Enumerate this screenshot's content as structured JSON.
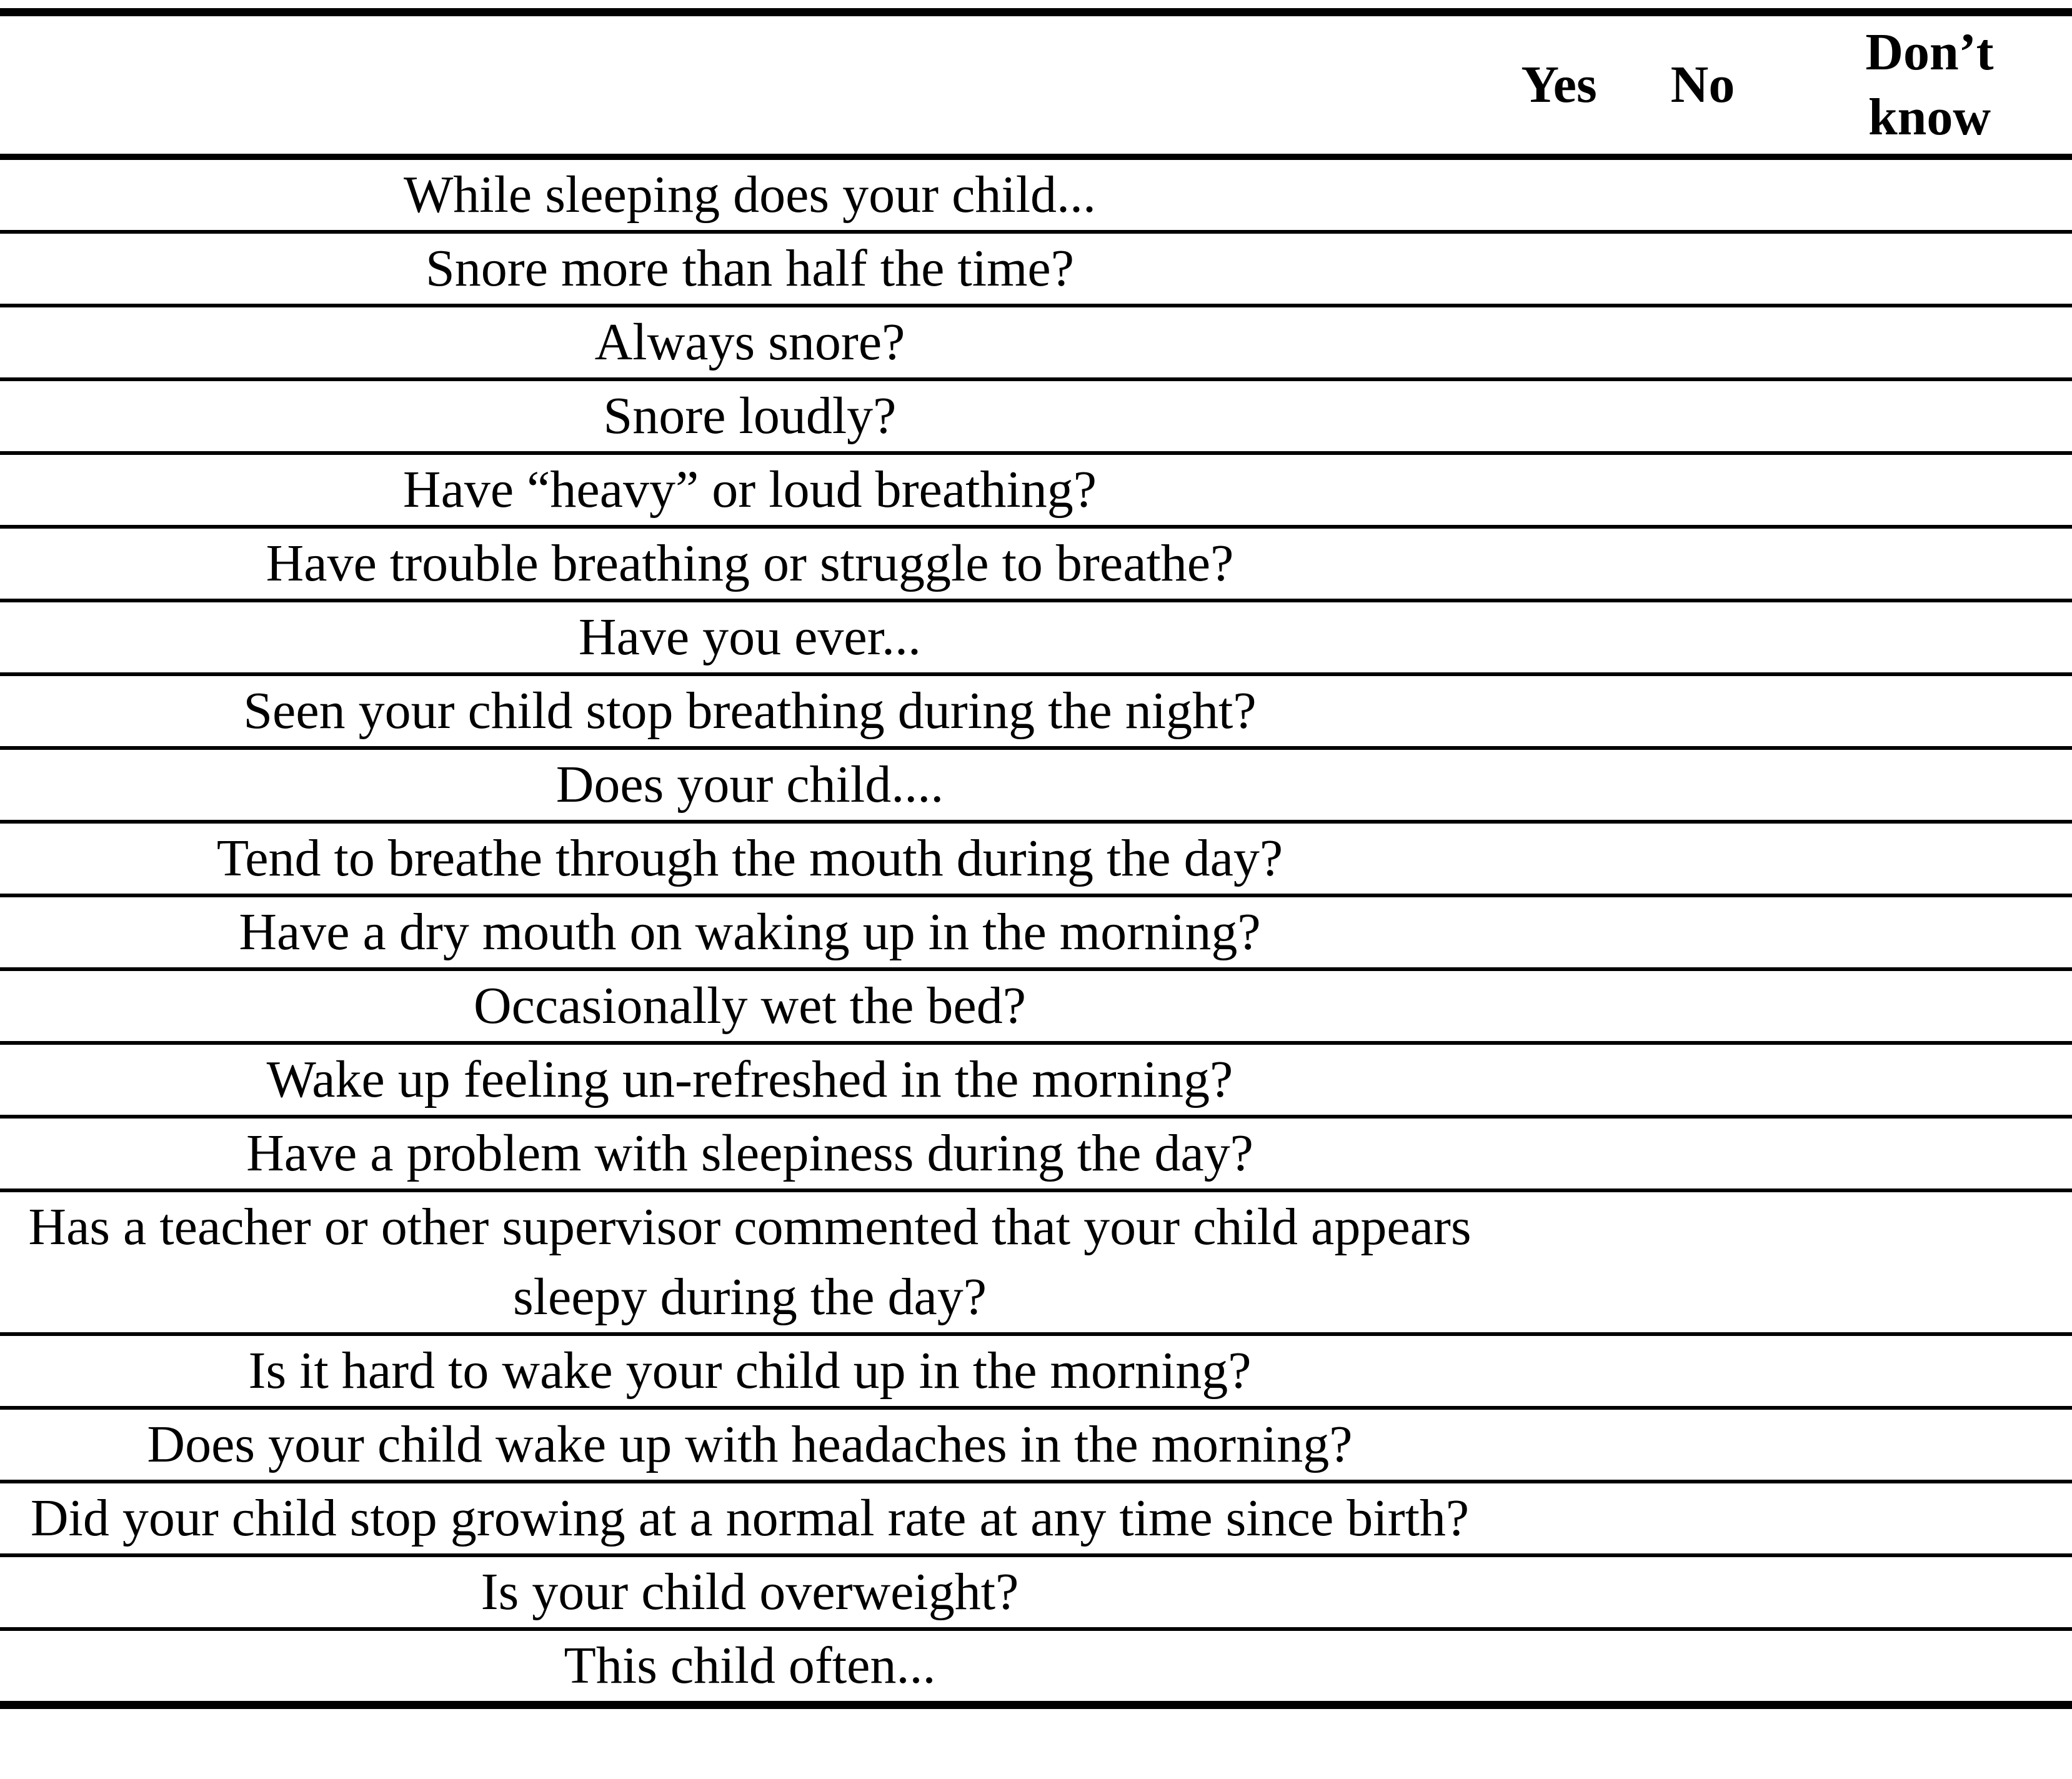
{
  "table": {
    "columns": [
      "Yes",
      "No",
      "Don’t know"
    ],
    "rows": [
      "While sleeping does your child...",
      "Snore more than half the time?",
      "Always snore?",
      "Snore loudly?",
      "Have “heavy” or loud breathing?",
      "Have trouble breathing or struggle to breathe?",
      "Have you ever...",
      "Seen your child stop breathing during the night?",
      "Does your child....",
      "Tend to breathe through the mouth during the day?",
      "Have a dry mouth on waking up in the morning?",
      "Occasionally wet the bed?",
      "Wake up feeling un-refreshed in the morning?",
      "Have a problem with sleepiness during the day?",
      "Has a teacher or other supervisor commented that your child appears sleepy during the day?",
      "Is it hard to wake your child up in the morning?",
      "Does your child wake up with headaches in the morning?",
      "Did your child stop growing at a normal rate at any time since birth?",
      "Is your child overweight?",
      "This child often..."
    ]
  }
}
